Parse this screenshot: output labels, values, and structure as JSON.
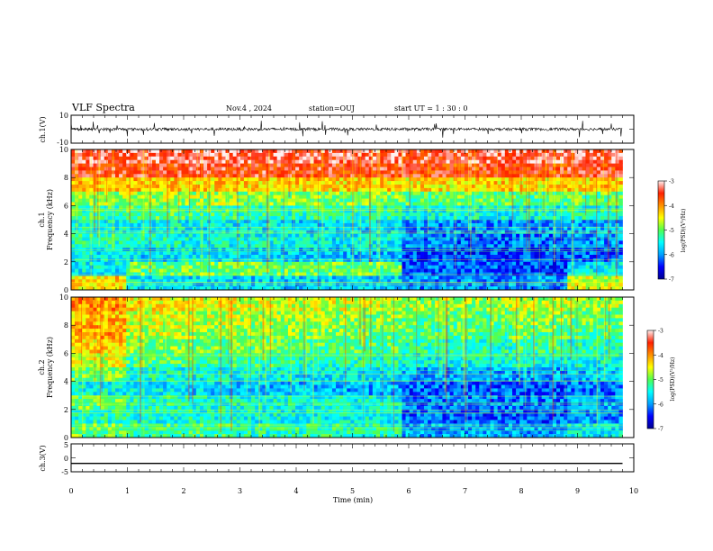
{
  "header": {
    "title": "VLF Spectra",
    "date": "Nov.4 , 2024",
    "station": "station=OUJ",
    "start": "start UT = 1 : 30 : 0"
  },
  "chart_data": [
    {
      "type": "line",
      "ylabel": "ch.1(V)",
      "ylim": [
        -10,
        10
      ],
      "y_ticks": [
        "10",
        "-10"
      ],
      "xlim": [
        0,
        10
      ],
      "series": [
        {
          "x_end": 9.8,
          "baseline": 0,
          "amplitude_typical": 2,
          "amplitude_spikes": 6
        }
      ]
    },
    {
      "type": "heatmap",
      "ylabel_channel": "ch.1",
      "ylabel": "Frequency (kHz)",
      "ylim": [
        0,
        10
      ],
      "y_ticks": [
        "0",
        "2",
        "4",
        "6",
        "8",
        "10"
      ],
      "xlim": [
        0,
        10
      ],
      "x_end": 9.8,
      "colorbar": {
        "label": "log(PSD)(V²/Hz)",
        "range": [
          -7,
          -3
        ],
        "ticks": [
          "-3",
          "-4",
          "-5",
          "-6",
          "-7"
        ]
      },
      "rows_freq_kHz": [
        9.5,
        8.5,
        7.5,
        6.5,
        5.5,
        4.5,
        3.5,
        2.5,
        1.5,
        0.5
      ],
      "cols_time_min": [
        0.5,
        1.5,
        2.5,
        3.5,
        4.5,
        5.5,
        6.5,
        7.5,
        8.5,
        9.5
      ],
      "values": [
        [
          -3.3,
          -3.3,
          -3.3,
          -3.3,
          -3.3,
          -3.3,
          -3.4,
          -3.3,
          -3.3,
          -3.3
        ],
        [
          -3.5,
          -3.5,
          -3.5,
          -3.5,
          -3.5,
          -3.5,
          -3.6,
          -3.6,
          -3.6,
          -3.5
        ],
        [
          -4.2,
          -4.2,
          -4.3,
          -4.3,
          -4.3,
          -4.3,
          -4.4,
          -4.3,
          -4.4,
          -4.3
        ],
        [
          -4.8,
          -4.8,
          -4.8,
          -4.9,
          -4.9,
          -4.9,
          -5.1,
          -5.0,
          -5.1,
          -5.0
        ],
        [
          -5.2,
          -5.1,
          -5.2,
          -5.3,
          -5.3,
          -5.3,
          -5.5,
          -5.5,
          -5.5,
          -5.4
        ],
        [
          -5.5,
          -5.5,
          -5.6,
          -5.6,
          -5.7,
          -5.7,
          -6.0,
          -6.0,
          -6.0,
          -5.9
        ],
        [
          -5.3,
          -5.4,
          -5.5,
          -5.5,
          -5.6,
          -5.6,
          -6.1,
          -6.2,
          -6.1,
          -6.0
        ],
        [
          -5.6,
          -5.7,
          -5.6,
          -5.7,
          -5.8,
          -5.8,
          -6.3,
          -6.3,
          -6.3,
          -6.2
        ],
        [
          -5.6,
          -5.0,
          -5.0,
          -5.0,
          -5.0,
          -5.0,
          -6.2,
          -6.2,
          -6.3,
          -5.6
        ],
        [
          -4.3,
          -5.6,
          -5.7,
          -5.7,
          -5.7,
          -5.7,
          -6.0,
          -6.0,
          -6.0,
          -4.6
        ]
      ]
    },
    {
      "type": "heatmap",
      "ylabel_channel": "ch.2",
      "ylabel": "Frequency (kHz)",
      "ylim": [
        0,
        10
      ],
      "y_ticks": [
        "0",
        "2",
        "4",
        "6",
        "8",
        "10"
      ],
      "xlim": [
        0,
        10
      ],
      "x_end": 9.8,
      "colorbar": {
        "label": "log(PSD)(V²/Hz)",
        "range": [
          -7,
          -3
        ],
        "ticks": [
          "-3",
          "-4",
          "-5",
          "-6",
          "-7"
        ]
      },
      "rows_freq_kHz": [
        9.5,
        8.5,
        7.5,
        6.5,
        5.5,
        4.5,
        3.5,
        2.5,
        1.5,
        0.5
      ],
      "cols_time_min": [
        0.5,
        1.5,
        2.5,
        3.5,
        4.5,
        5.5,
        6.5,
        7.5,
        8.5,
        9.5
      ],
      "values": [
        [
          -4.0,
          -4.4,
          -4.5,
          -4.6,
          -4.6,
          -4.7,
          -4.8,
          -4.8,
          -4.7,
          -4.8
        ],
        [
          -4.2,
          -4.6,
          -4.7,
          -4.8,
          -4.8,
          -4.9,
          -5.0,
          -5.0,
          -4.9,
          -5.0
        ],
        [
          -4.1,
          -4.7,
          -4.8,
          -4.9,
          -4.9,
          -5.0,
          -5.1,
          -5.1,
          -5.0,
          -5.1
        ],
        [
          -4.3,
          -4.9,
          -5.0,
          -5.0,
          -5.1,
          -5.1,
          -5.3,
          -5.3,
          -5.2,
          -5.3
        ],
        [
          -4.6,
          -5.1,
          -5.2,
          -5.2,
          -5.3,
          -5.3,
          -5.5,
          -5.5,
          -5.5,
          -5.5
        ],
        [
          -5.0,
          -5.4,
          -5.5,
          -5.5,
          -5.6,
          -5.6,
          -5.9,
          -5.9,
          -5.9,
          -5.8
        ],
        [
          -5.5,
          -5.6,
          -5.7,
          -5.8,
          -5.8,
          -5.9,
          -6.2,
          -6.2,
          -6.2,
          -6.1
        ],
        [
          -5.0,
          -5.3,
          -5.4,
          -5.4,
          -5.5,
          -5.5,
          -6.1,
          -6.1,
          -6.1,
          -5.9
        ],
        [
          -5.3,
          -5.4,
          -5.4,
          -5.5,
          -5.5,
          -5.5,
          -6.2,
          -6.2,
          -6.2,
          -6.0
        ],
        [
          -5.0,
          -5.2,
          -5.2,
          -5.3,
          -5.3,
          -5.3,
          -5.9,
          -5.9,
          -5.9,
          -5.6
        ]
      ]
    },
    {
      "type": "line",
      "ylabel": "ch.3(V)",
      "ylim": [
        -5,
        5
      ],
      "y_ticks": [
        "5",
        "0",
        "-5"
      ],
      "xlim": [
        0,
        10
      ],
      "series": [
        {
          "x": [
            0,
            9.8
          ],
          "y": [
            -2,
            -2
          ]
        }
      ]
    }
  ],
  "xaxis": {
    "label": "Time (min)",
    "ticks": [
      "0",
      "1",
      "2",
      "3",
      "4",
      "5",
      "6",
      "7",
      "8",
      "9",
      "10"
    ]
  },
  "colors": {
    "colormap": [
      "#000090",
      "#0000ff",
      "#00a0ff",
      "#00ffff",
      "#50ff50",
      "#ffff00",
      "#ff9000",
      "#ff2000",
      "#fff0f0"
    ],
    "trace": "#000000"
  }
}
